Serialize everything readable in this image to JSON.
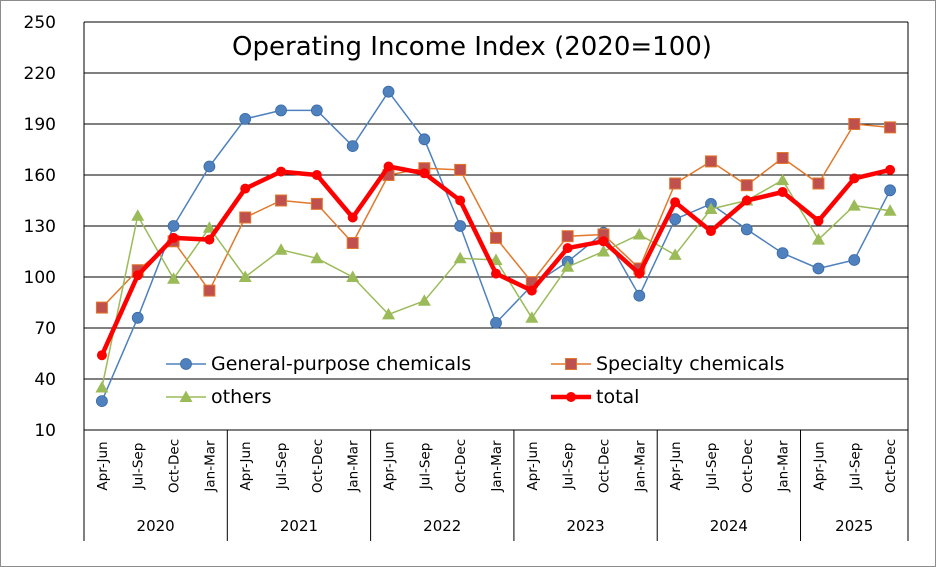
{
  "chart_data": {
    "type": "line",
    "title": "Operating Income Index (2020=100)",
    "xlabel": "",
    "ylabel": "",
    "ylim": [
      10,
      250
    ],
    "yticks": [
      10,
      40,
      70,
      100,
      130,
      160,
      190,
      220,
      250
    ],
    "grid": true,
    "legend_position": "lower-center",
    "categories": [
      "Apr-Jun",
      "Jul-Sep",
      "Oct-Dec",
      "Jan-Mar",
      "Apr-Jun",
      "Jul-Sep",
      "Oct-Dec",
      "Jan-Mar",
      "Apr-Jun",
      "Jul-Sep",
      "Oct-Dec",
      "Jan-Mar",
      "Apr-Jun",
      "Jul-Sep",
      "Oct-Dec",
      "Jan-Mar",
      "Apr-Jun",
      "Jul-Sep",
      "Oct-Dec",
      "Jan-Mar",
      "Apr-Jun",
      "Jul-Sep",
      "Oct-Dec"
    ],
    "year_groups": [
      {
        "label": "2020",
        "count": 4
      },
      {
        "label": "2021",
        "count": 4
      },
      {
        "label": "2022",
        "count": 4
      },
      {
        "label": "2023",
        "count": 4
      },
      {
        "label": "2024",
        "count": 4
      },
      {
        "label": "2025",
        "count": 3
      }
    ],
    "series": [
      {
        "name": "General-purpose chemicals",
        "color": "#4e81bd",
        "marker": "circle",
        "values": [
          27,
          76,
          130,
          165,
          193,
          198,
          198,
          177,
          209,
          181,
          130,
          73,
          95,
          109,
          126,
          89,
          134,
          143,
          128,
          114,
          105,
          110,
          151
        ]
      },
      {
        "name": "Specialty chemicals",
        "color": "#e2782b",
        "marker": "square",
        "values": [
          82,
          104,
          121,
          92,
          135,
          145,
          143,
          120,
          160,
          164,
          163,
          123,
          97,
          124,
          125,
          105,
          155,
          168,
          154,
          170,
          155,
          190,
          188
        ]
      },
      {
        "name": "others",
        "color": "#9bbb59",
        "marker": "triangle",
        "values": [
          35,
          136,
          99,
          129,
          100,
          116,
          111,
          100,
          78,
          86,
          111,
          110,
          76,
          106,
          115,
          125,
          113,
          140,
          145,
          157,
          122,
          142,
          139
        ]
      },
      {
        "name": "total",
        "color": "#ff0000",
        "marker": "circle-bold",
        "values": [
          54,
          101,
          123,
          122,
          152,
          162,
          160,
          135,
          165,
          161,
          145,
          102,
          92,
          117,
          121,
          102,
          144,
          127,
          145,
          150,
          133,
          158,
          163
        ]
      }
    ]
  }
}
